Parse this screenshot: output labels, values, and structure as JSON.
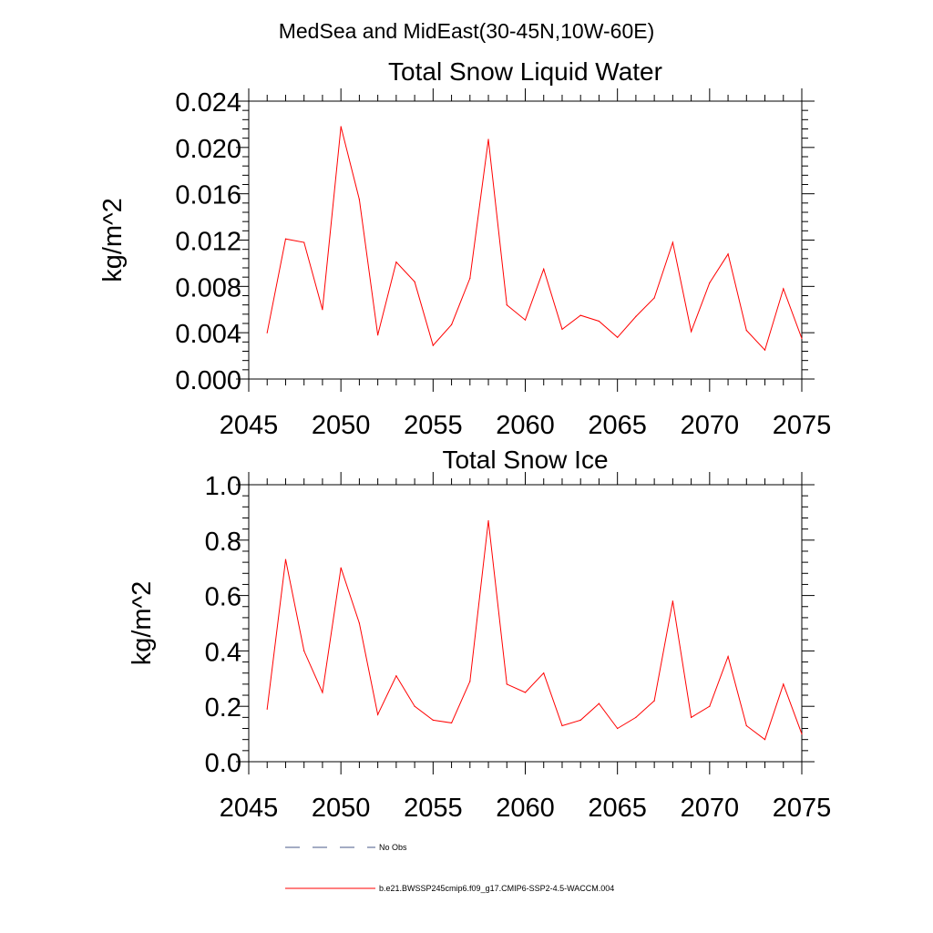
{
  "figure": {
    "title": "MedSea and MidEast(30-45N,10W-60E)"
  },
  "colors": {
    "series_line": "#ff0000",
    "obs_line": "#4a5a8a",
    "axis": "#000000"
  },
  "legend": {
    "entries": [
      {
        "label": "No Obs",
        "style": "dashed",
        "color": "#4a5a8a"
      },
      {
        "label": "b.e21.BWSSP245cmip6.f09_g17.CMIP6-SSP2-4.5-WACCM.004",
        "style": "solid",
        "color": "#ff0000"
      }
    ]
  },
  "chart_data": [
    {
      "type": "line",
      "title": "Total Snow Liquid Water",
      "xlabel": "",
      "ylabel": "kg/m^2",
      "xlim": [
        2045,
        2075
      ],
      "ylim": [
        0,
        0.024
      ],
      "grid": false,
      "x_major_ticks": [
        2045,
        2050,
        2055,
        2060,
        2065,
        2070,
        2075
      ],
      "x_tick_labels": [
        "2045",
        "2050",
        "2055",
        "2060",
        "2065",
        "2070",
        "2075"
      ],
      "y_major_ticks": [
        0,
        0.004,
        0.008,
        0.012,
        0.016,
        0.02,
        0.024
      ],
      "y_tick_labels": [
        "0.000",
        "0.004",
        "0.008",
        "0.012",
        "0.016",
        "0.020",
        "0.024"
      ],
      "x": [
        2046,
        2047,
        2048,
        2049,
        2050,
        2051,
        2052,
        2053,
        2054,
        2055,
        2056,
        2057,
        2058,
        2059,
        2060,
        2061,
        2062,
        2063,
        2064,
        2065,
        2066,
        2067,
        2068,
        2069,
        2070,
        2071,
        2072,
        2073,
        2074,
        2075
      ],
      "series": [
        {
          "color": "#ff0000",
          "values": [
            0.004,
            0.0121,
            0.0118,
            0.006,
            0.0218,
            0.0155,
            0.0038,
            0.0101,
            0.0084,
            0.0029,
            0.0047,
            0.0087,
            0.0207,
            0.0064,
            0.0051,
            0.0095,
            0.0043,
            0.0055,
            0.005,
            0.0036,
            0.0054,
            0.007,
            0.0118,
            0.0041,
            0.0083,
            0.0108,
            0.0042,
            0.0025,
            0.0078,
            0.0035
          ]
        }
      ]
    },
    {
      "type": "line",
      "title": "Total Snow Ice",
      "xlabel": "",
      "ylabel": "kg/m^2",
      "xlim": [
        2045,
        2075
      ],
      "ylim": [
        0,
        1.0
      ],
      "grid": false,
      "x_major_ticks": [
        2045,
        2050,
        2055,
        2060,
        2065,
        2070,
        2075
      ],
      "x_tick_labels": [
        "2045",
        "2050",
        "2055",
        "2060",
        "2065",
        "2070",
        "2075"
      ],
      "y_major_ticks": [
        0,
        0.2,
        0.4,
        0.6,
        0.8,
        1.0
      ],
      "y_tick_labels": [
        "0.0",
        "0.2",
        "0.4",
        "0.6",
        "0.8",
        "1.0"
      ],
      "x": [
        2046,
        2047,
        2048,
        2049,
        2050,
        2051,
        2052,
        2053,
        2054,
        2055,
        2056,
        2057,
        2058,
        2059,
        2060,
        2061,
        2062,
        2063,
        2064,
        2065,
        2066,
        2067,
        2068,
        2069,
        2070,
        2071,
        2072,
        2073,
        2074,
        2075
      ],
      "series": [
        {
          "color": "#ff0000",
          "values": [
            0.19,
            0.73,
            0.4,
            0.25,
            0.7,
            0.5,
            0.17,
            0.31,
            0.2,
            0.15,
            0.14,
            0.29,
            0.87,
            0.28,
            0.25,
            0.32,
            0.13,
            0.15,
            0.21,
            0.12,
            0.16,
            0.22,
            0.58,
            0.16,
            0.2,
            0.38,
            0.13,
            0.08,
            0.28,
            0.1
          ]
        }
      ]
    }
  ]
}
